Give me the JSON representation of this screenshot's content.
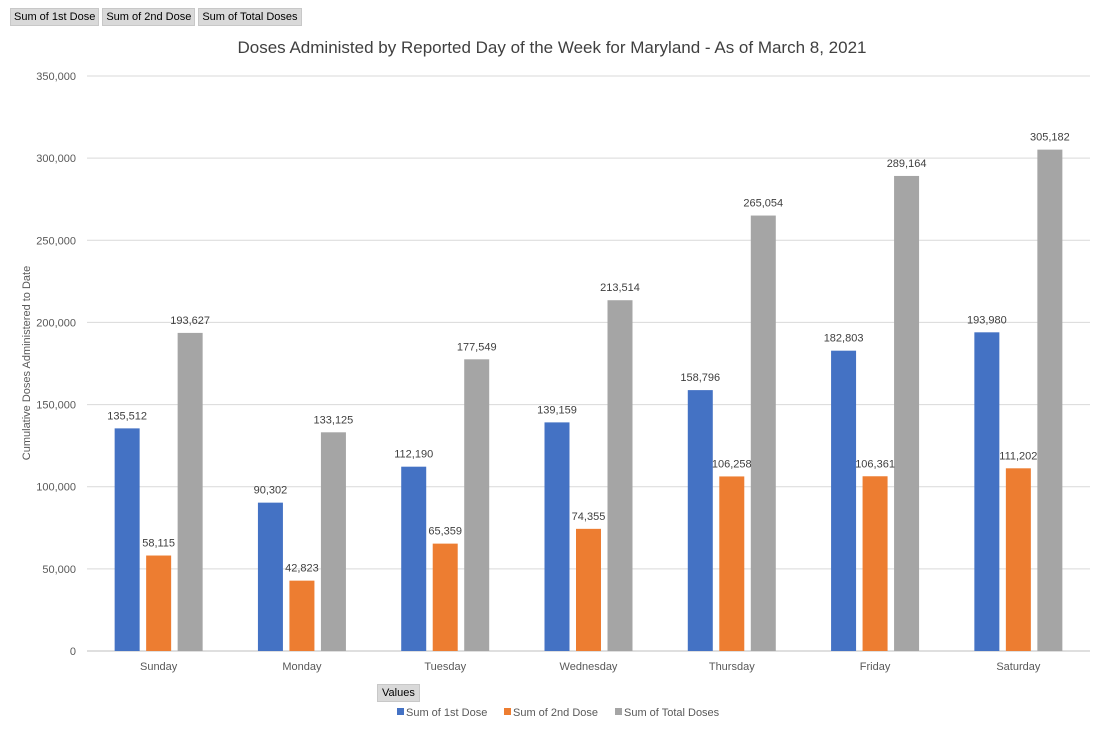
{
  "field_buttons": [
    "Sum of 1st Dose",
    "Sum of 2nd Dose",
    "Sum of Total Doses"
  ],
  "values_button": "Values",
  "chart_data": {
    "type": "bar",
    "title": "Doses Administed by Reported Day of the Week for Maryland - As of March 8, 2021",
    "xlabel": "",
    "ylabel": "Cumulative Doses Administered to Date",
    "categories": [
      "Sunday",
      "Monday",
      "Tuesday",
      "Wednesday",
      "Thursday",
      "Friday",
      "Saturday"
    ],
    "series": [
      {
        "name": "Sum of 1st Dose",
        "color": "#4472C4",
        "values": [
          135512,
          90302,
          112190,
          139159,
          158796,
          182803,
          193980
        ]
      },
      {
        "name": "Sum of 2nd Dose",
        "color": "#ED7D31",
        "values": [
          58115,
          42823,
          65359,
          74355,
          106258,
          106361,
          111202
        ]
      },
      {
        "name": "Sum of Total Doses",
        "color": "#A5A5A5",
        "values": [
          193627,
          133125,
          177549,
          213514,
          265054,
          289164,
          305182
        ]
      }
    ],
    "ylim": [
      0,
      350000
    ],
    "yticks": [
      "0",
      "50,000",
      "100,000",
      "150,000",
      "200,000",
      "250,000",
      "300,000",
      "350,000"
    ],
    "grid": true,
    "legend_position": "bottom"
  }
}
